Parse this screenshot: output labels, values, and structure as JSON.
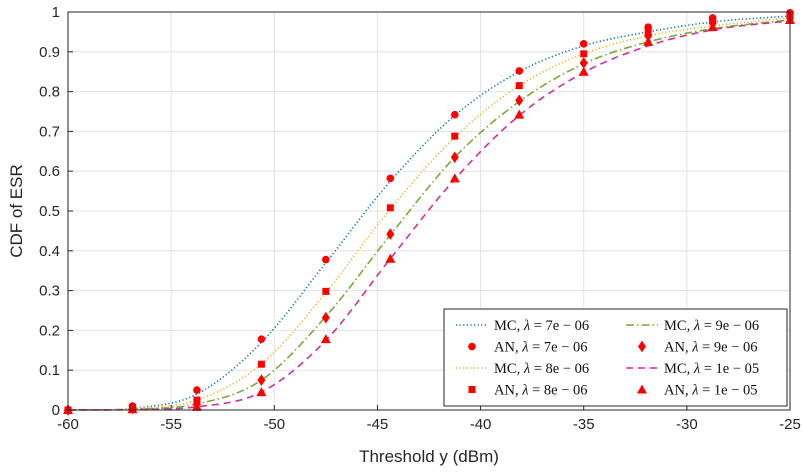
{
  "chart_data": {
    "type": "line",
    "title": "",
    "xlabel": "Threshold y (dBm)",
    "ylabel": "CDF of ESR",
    "xlim": [
      -60,
      -25
    ],
    "ylim": [
      0,
      1
    ],
    "xticks": [
      "-60",
      "-55",
      "-50",
      "-45",
      "-40",
      "-35",
      "-30",
      "-25"
    ],
    "yticks": [
      "0",
      "0.1",
      "0.2",
      "0.3",
      "0.4",
      "0.5",
      "0.6",
      "0.7",
      "0.8",
      "0.9",
      "1"
    ],
    "grid": true,
    "legend_position": "bottom-right",
    "x_markers": [
      -60,
      -56.875,
      -53.75,
      -50.625,
      -47.5,
      -44.375,
      -41.25,
      -38.125,
      -35,
      -31.875,
      -28.75,
      -25
    ],
    "series": [
      {
        "name": "MC, λ = 7e − 06",
        "kind": "curve",
        "color": "#0072BD",
        "dash": "dotted",
        "values": [
          0.0,
          0.004,
          0.04,
          0.17,
          0.37,
          0.575,
          0.74,
          0.85,
          0.915,
          0.95,
          0.975,
          0.99
        ]
      },
      {
        "name": "AN, λ = 7e − 06",
        "kind": "markers",
        "marker": "circle",
        "color": "#FF0000",
        "values": [
          0.0,
          0.01,
          0.05,
          0.178,
          0.378,
          0.582,
          0.742,
          0.852,
          0.92,
          0.962,
          0.985,
          0.998
        ]
      },
      {
        "name": "MC, λ = 8e − 06",
        "kind": "curve",
        "color": "#EDB120",
        "dash": "dotted",
        "values": [
          0.0,
          0.003,
          0.025,
          0.115,
          0.295,
          0.505,
          0.685,
          0.815,
          0.895,
          0.94,
          0.965,
          0.985
        ]
      },
      {
        "name": "AN, λ = 8e − 06",
        "kind": "markers",
        "marker": "square",
        "color": "#FF0000",
        "values": [
          0.0,
          0.006,
          0.025,
          0.115,
          0.298,
          0.508,
          0.688,
          0.815,
          0.895,
          0.95,
          0.978,
          0.99
        ]
      },
      {
        "name": "MC, λ = 9e − 06",
        "kind": "curve",
        "color": "#77AC30",
        "dash": "dashdot",
        "values": [
          0.0,
          0.002,
          0.015,
          0.075,
          0.235,
          0.44,
          0.635,
          0.775,
          0.87,
          0.925,
          0.958,
          0.98
        ]
      },
      {
        "name": "AN, λ = 9e − 06",
        "kind": "markers",
        "marker": "diamond",
        "color": "#FF0000",
        "values": [
          0.0,
          0.004,
          0.015,
          0.075,
          0.232,
          0.442,
          0.635,
          0.778,
          0.872,
          0.94,
          0.972,
          0.985
        ]
      },
      {
        "name": "MC, λ = 1e − 05",
        "kind": "curve",
        "color": "#D0309A",
        "dash": "dashed",
        "values": [
          0.0,
          0.001,
          0.008,
          0.045,
          0.175,
          0.38,
          0.58,
          0.74,
          0.848,
          0.915,
          0.955,
          0.978
        ]
      },
      {
        "name": "AN, λ = 1e − 05",
        "kind": "markers",
        "marker": "triangle",
        "color": "#FF0000",
        "values": [
          0.0,
          0.002,
          0.008,
          0.045,
          0.178,
          0.38,
          0.582,
          0.742,
          0.85,
          0.925,
          0.962,
          0.98
        ]
      }
    ],
    "legend": [
      {
        "method": "MC",
        "lambda": "7e − 06",
        "series": 0
      },
      {
        "method": "MC",
        "lambda": "9e − 06",
        "series": 4
      },
      {
        "method": "AN",
        "lambda": "7e − 06",
        "series": 1
      },
      {
        "method": "AN",
        "lambda": "9e − 06",
        "series": 5
      },
      {
        "method": "MC",
        "lambda": "8e − 06",
        "series": 2
      },
      {
        "method": "MC",
        "lambda": "1e − 05",
        "series": 6
      },
      {
        "method": "AN",
        "lambda": "8e − 06",
        "series": 3
      },
      {
        "method": "AN",
        "lambda": "1e − 05",
        "series": 7
      }
    ]
  }
}
